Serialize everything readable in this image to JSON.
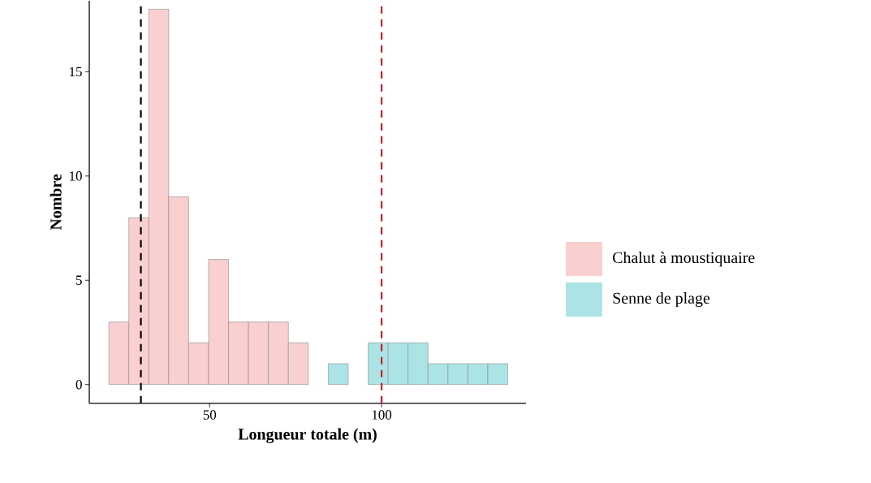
{
  "chart_data": {
    "type": "histogram",
    "xlabel": "Longueur totale (m)",
    "ylabel": "Nombre",
    "bins": [
      20.7,
      26.5,
      32.3,
      38.1,
      43.9,
      49.7,
      55.5,
      61.3,
      67.1,
      72.9,
      78.7,
      84.5,
      90.3,
      96.1,
      101.9,
      107.7,
      113.5,
      119.3,
      125.1,
      130.9,
      136.7
    ],
    "series": [
      {
        "name": "Chalut à moustiquaire",
        "color": "#f9cfcf",
        "values": [
          3,
          8,
          18,
          9,
          2,
          6,
          3,
          3,
          3,
          2,
          0,
          0,
          0,
          0,
          0,
          0,
          0,
          0,
          0,
          0
        ]
      },
      {
        "name": "Senne de plage",
        "color": "#ace4e6",
        "values": [
          0,
          0,
          0,
          0,
          0,
          0,
          0,
          0,
          0,
          0,
          0,
          1,
          0,
          2,
          2,
          2,
          1,
          1,
          1,
          1
        ]
      }
    ],
    "xlim": [
      15,
      142
    ],
    "ylim": [
      -0.9,
      18.4
    ],
    "xticks": [
      50,
      100
    ],
    "yticks": [
      0,
      5,
      10,
      15
    ],
    "ref_lines": [
      {
        "axis": "x",
        "value": 30,
        "color": "#000000",
        "line_style": "dashed"
      },
      {
        "axis": "x",
        "value": 100,
        "color": "#cc1f2a",
        "line_style": "dashed"
      }
    ],
    "legend": "right",
    "grid": false
  }
}
